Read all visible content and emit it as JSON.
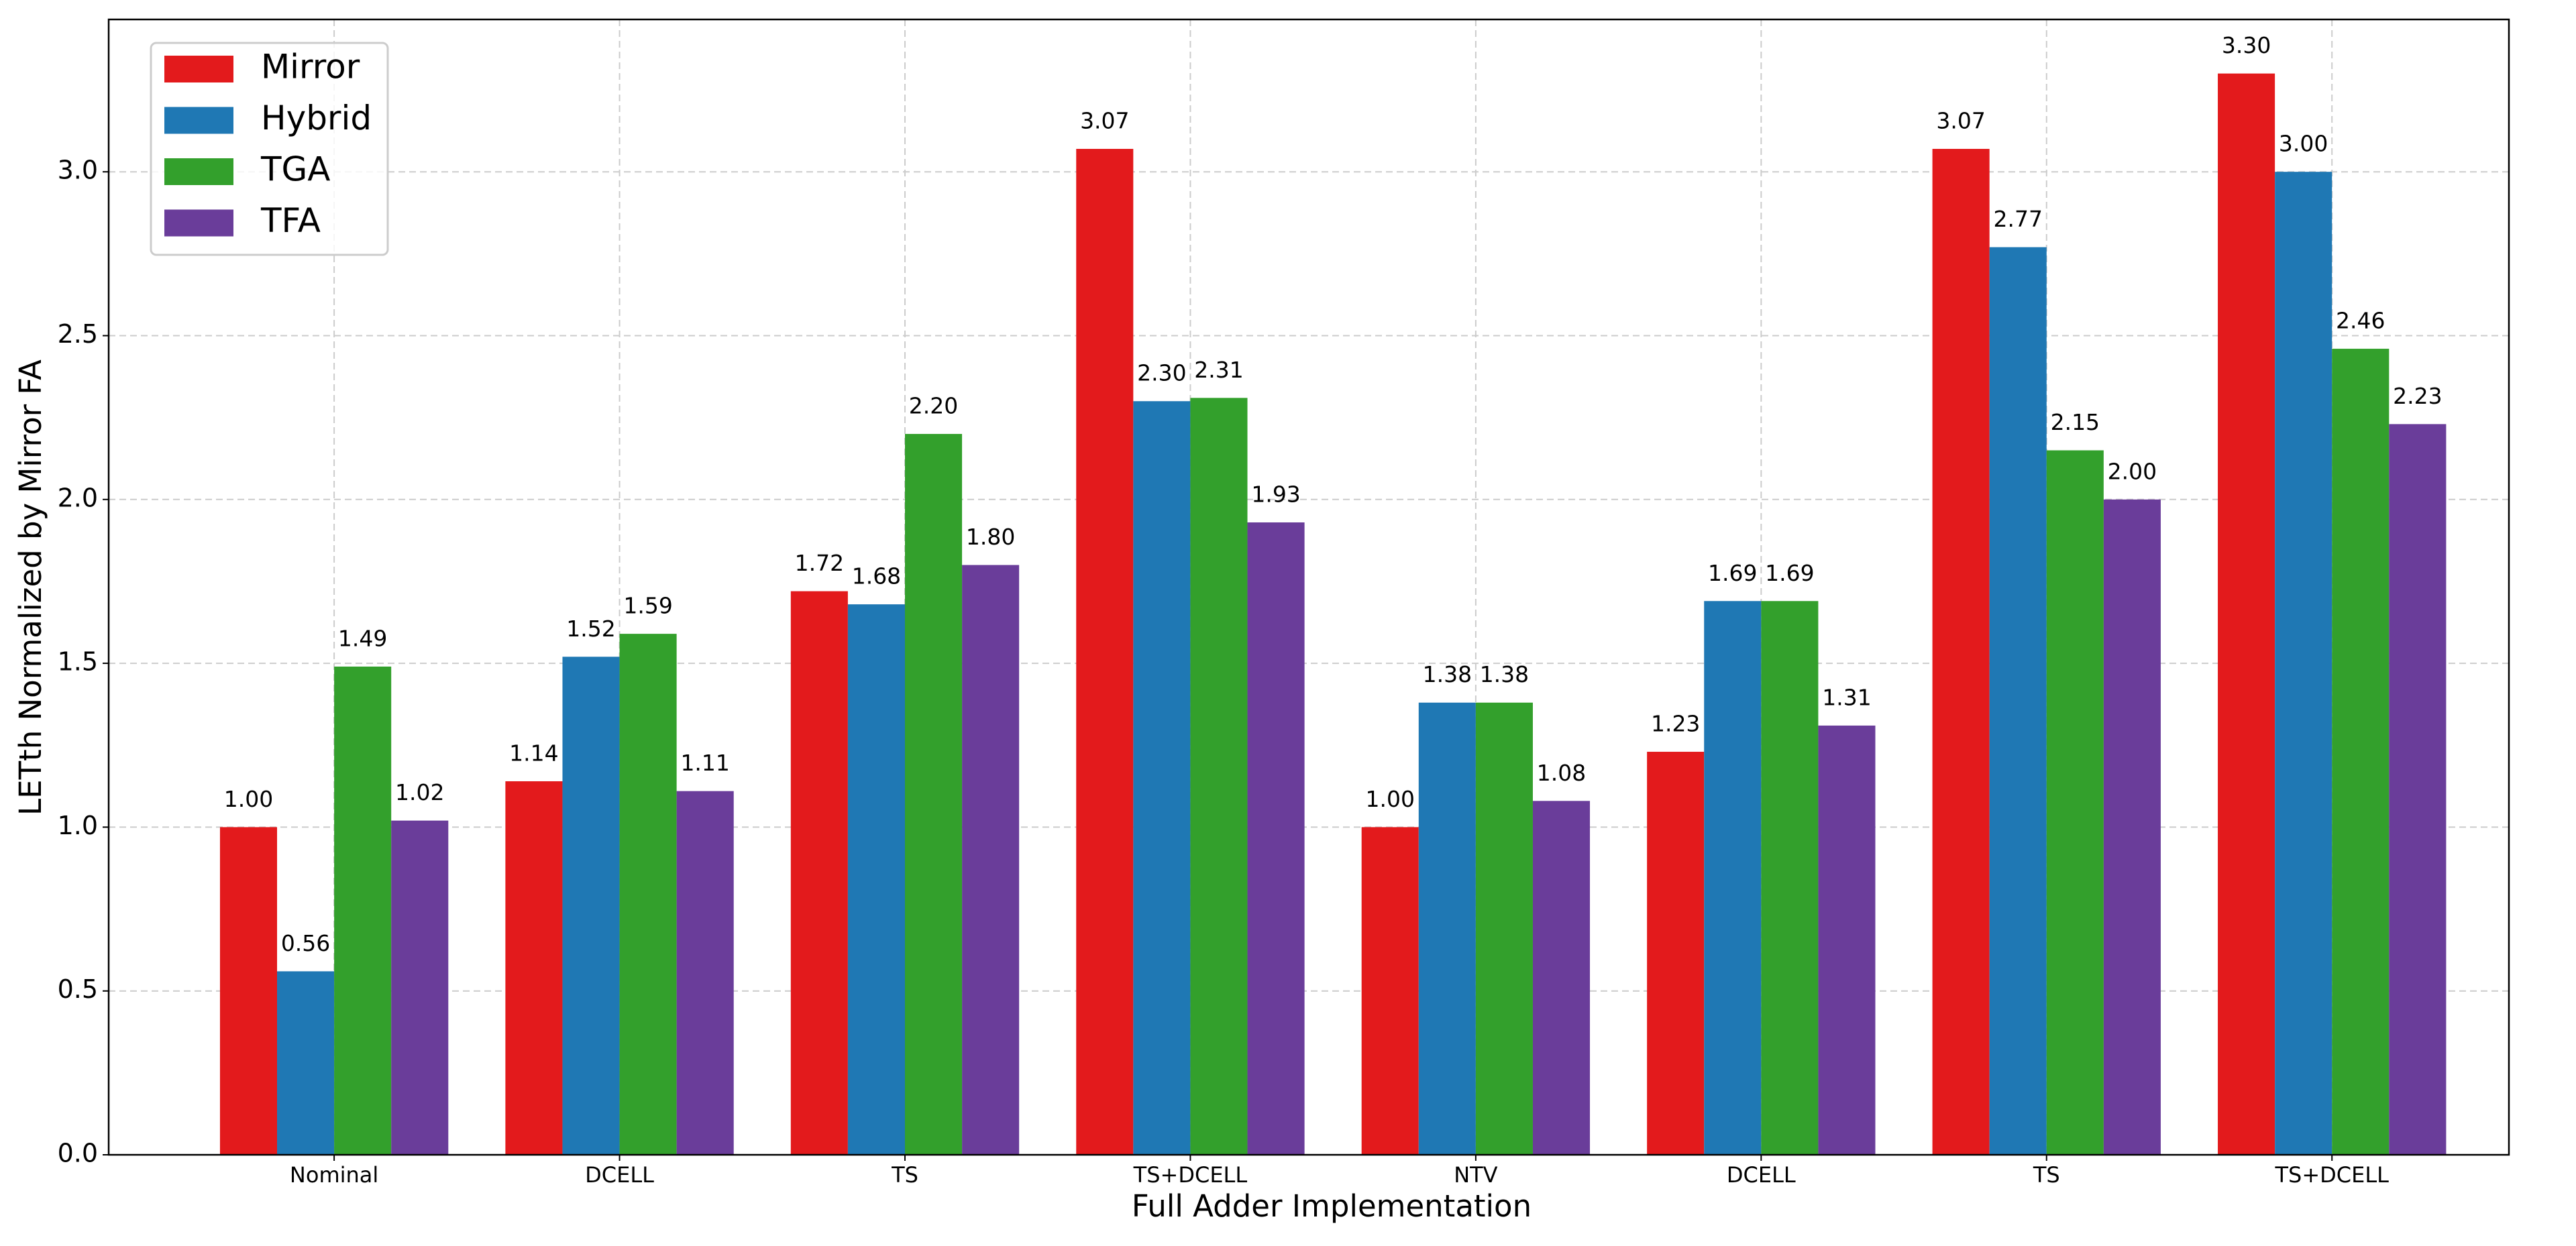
{
  "chart_data": {
    "type": "bar",
    "x_label": "Full Adder Implementation",
    "y_label": "LETth Normalized by Mirror FA",
    "categories": [
      "Nominal",
      "DCELL",
      "TS",
      "TS+DCELL",
      "NTV",
      "DCELL",
      "TS",
      "TS+DCELL"
    ],
    "series": [
      {
        "name": "Mirror",
        "color": "#e31a1c",
        "values": [
          1.0,
          1.14,
          1.72,
          3.07,
          1.0,
          1.23,
          3.07,
          3.3
        ],
        "value_labels": [
          "1.00",
          "1.14",
          "1.72",
          "3.07",
          "1.00",
          "1.23",
          "3.07",
          "3.30"
        ]
      },
      {
        "name": "Hybrid",
        "color": "#1f78b4",
        "values": [
          0.56,
          1.52,
          1.68,
          2.3,
          1.38,
          1.69,
          2.77,
          3.0
        ],
        "value_labels": [
          "0.56",
          "1.52",
          "1.68",
          "2.30",
          "1.38",
          "1.69",
          "2.77",
          "3.00"
        ]
      },
      {
        "name": "TGA",
        "color": "#33a02c",
        "values": [
          1.49,
          1.59,
          2.2,
          2.31,
          1.38,
          1.69,
          2.15,
          2.46
        ],
        "value_labels": [
          "1.49",
          "1.59",
          "2.20",
          "2.31",
          "1.38",
          "1.69",
          "2.15",
          "2.46"
        ]
      },
      {
        "name": "TFA",
        "color": "#6a3d9a",
        "values": [
          1.02,
          1.11,
          1.8,
          1.93,
          1.08,
          1.31,
          2.0,
          2.23
        ],
        "value_labels": [
          "1.02",
          "1.11",
          "1.80",
          "1.93",
          "1.08",
          "1.31",
          "2.00",
          "2.23"
        ]
      }
    ],
    "ylim": [
      0,
      3.465
    ],
    "yticks": [
      {
        "value": 0,
        "label": "0.0"
      },
      0.5,
      {
        "value": 1,
        "label": "1.0"
      },
      1.5,
      {
        "value": 2,
        "label": "2.0"
      },
      2.5,
      {
        "value": 3,
        "label": "3.0"
      }
    ],
    "grid": true,
    "legend": "upper left"
  }
}
